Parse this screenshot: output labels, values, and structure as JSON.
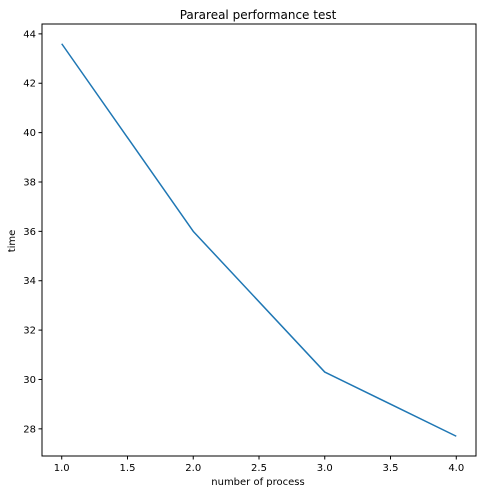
{
  "chart_data": {
    "type": "line",
    "title": "Parareal performance test",
    "xlabel": "number of process",
    "ylabel": "time",
    "x": [
      1.0,
      2.0,
      3.0,
      4.0
    ],
    "series": [
      {
        "values": [
          43.6,
          36.0,
          30.3,
          27.7
        ]
      }
    ],
    "xlim": [
      0.85,
      4.15
    ],
    "ylim": [
      26.9,
      44.4
    ],
    "xticks": [
      1.0,
      1.5,
      2.0,
      2.5,
      3.0,
      3.5,
      4.0
    ],
    "xtick_labels": [
      "1.0",
      "1.5",
      "2.0",
      "2.5",
      "3.0",
      "3.5",
      "4.0"
    ],
    "yticks": [
      28,
      30,
      32,
      34,
      36,
      38,
      40,
      42,
      44
    ],
    "ytick_labels": [
      "28",
      "30",
      "32",
      "34",
      "36",
      "38",
      "40",
      "42",
      "44"
    ],
    "grid": false,
    "colors": {
      "line": "#1f77b4",
      "axes": "#000000"
    }
  }
}
